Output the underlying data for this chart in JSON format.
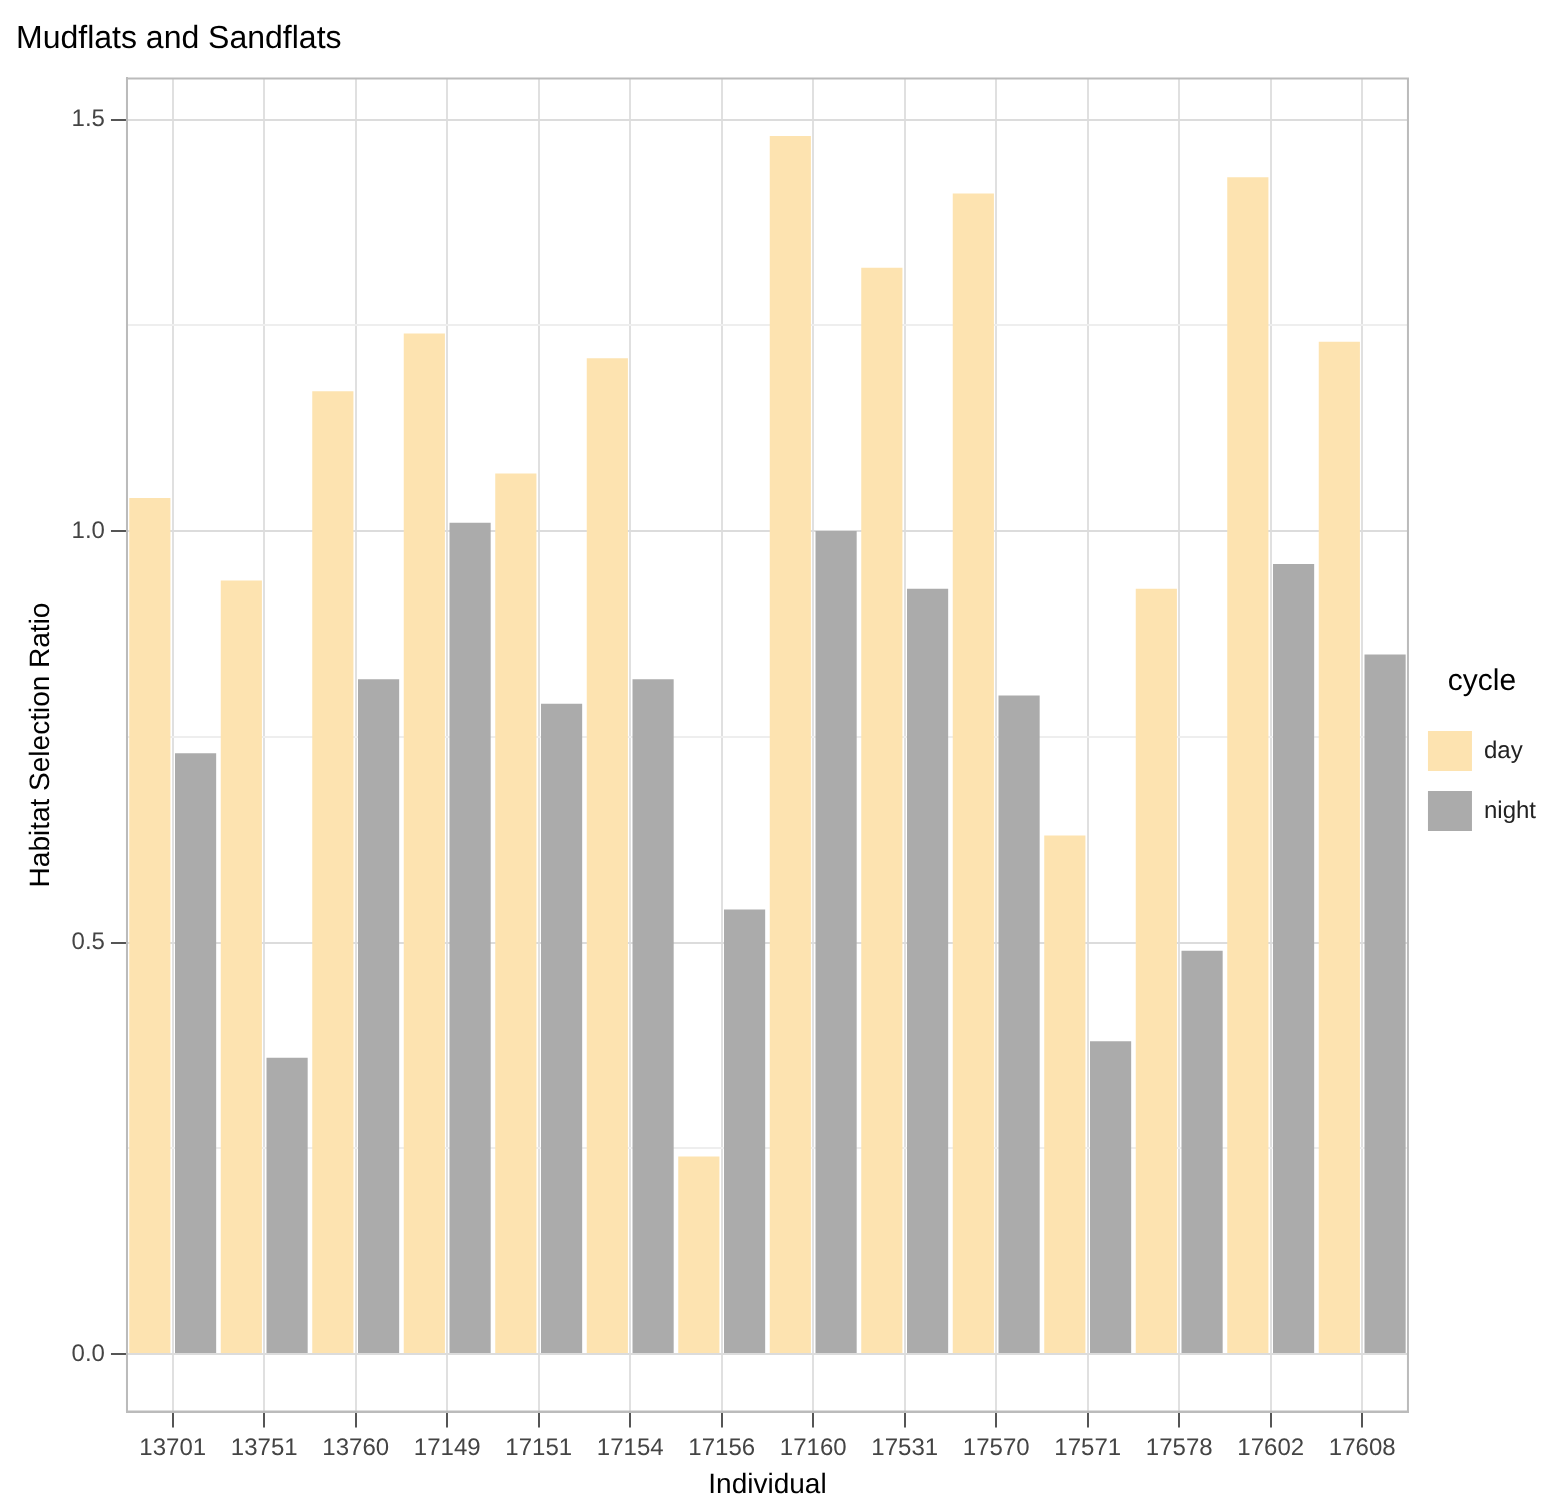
{
  "chart_data": {
    "type": "bar",
    "title": "Mudflats and Sandflats",
    "xlabel": "Individual",
    "ylabel": "Habitat Selection Ratio",
    "legend_title": "cycle",
    "categories": [
      "13701",
      "13751",
      "13760",
      "17149",
      "17151",
      "17154",
      "17156",
      "17160",
      "17531",
      "17570",
      "17571",
      "17578",
      "17602",
      "17608"
    ],
    "series": [
      {
        "name": "day",
        "color": "#fde3b0",
        "values": [
          1.04,
          0.94,
          1.17,
          1.24,
          1.07,
          1.21,
          0.24,
          1.48,
          1.32,
          1.41,
          0.63,
          0.93,
          1.43,
          1.23
        ]
      },
      {
        "name": "night",
        "color": "#ababab",
        "values": [
          0.73,
          0.36,
          0.82,
          1.01,
          0.79,
          0.82,
          0.54,
          1.0,
          0.93,
          0.8,
          0.38,
          0.49,
          0.96,
          0.85
        ]
      }
    ],
    "ylim": [
      -0.07,
      1.55
    ],
    "yticks": [
      {
        "value": 0,
        "label": "0.0"
      },
      {
        "value": 0.25,
        "label": null
      },
      {
        "value": 0.5,
        "label": "0.5"
      },
      {
        "value": 0.75,
        "label": null
      },
      {
        "value": 1,
        "label": "1.0"
      },
      {
        "value": 1.25,
        "label": null
      },
      {
        "value": 1.5,
        "label": "1.5"
      }
    ],
    "grid": true,
    "legend": "right"
  }
}
